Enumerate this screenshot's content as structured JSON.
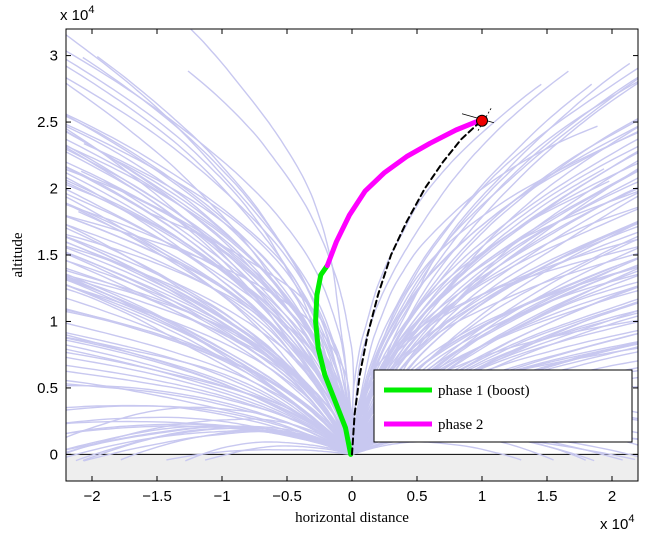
{
  "chart_data": {
    "type": "line",
    "xlabel": "horizontal distance",
    "ylabel": "altitude",
    "x_multiplier_label": "x 10",
    "x_multiplier_exp": "4",
    "y_multiplier_label": "x 10",
    "y_multiplier_exp": "4",
    "xlim": [
      -2.2,
      2.2
    ],
    "ylim": [
      -0.2,
      3.2
    ],
    "xticks": [
      -2,
      -1.5,
      -1,
      -0.5,
      0,
      0.5,
      1,
      1.5,
      2
    ],
    "xtick_labels": [
      "−2",
      "−1.5",
      "−1",
      "−0.5",
      "0",
      "0.5",
      "1",
      "1.5",
      "2"
    ],
    "yticks": [
      0,
      0.5,
      1,
      1.5,
      2,
      2.5,
      3
    ],
    "ytick_labels": [
      "0",
      "0.5",
      "1",
      "1.5",
      "2",
      "2.5",
      "3"
    ],
    "ground_level": 0,
    "legend": {
      "placement": "bottom-right",
      "entries": [
        "phase 1 (boost)",
        "phase 2"
      ]
    },
    "series": [
      {
        "name": "phase 1 (boost)",
        "color": "#00ee00",
        "x": [
          -0.01,
          -0.05,
          -0.13,
          -0.21,
          -0.26,
          -0.28,
          -0.27,
          -0.24,
          -0.19
        ],
        "y": [
          0.0,
          0.2,
          0.4,
          0.6,
          0.8,
          1.0,
          1.2,
          1.35,
          1.42
        ]
      },
      {
        "name": "phase 2",
        "color": "#ff00ff",
        "x": [
          -0.19,
          -0.12,
          -0.02,
          0.1,
          0.25,
          0.42,
          0.6,
          0.8,
          0.95,
          1.0
        ],
        "y": [
          1.42,
          1.6,
          1.8,
          1.98,
          2.12,
          2.24,
          2.34,
          2.44,
          2.5,
          2.51
        ]
      },
      {
        "color": "#000000",
        "x": [
          0.0,
          0.02,
          0.06,
          0.12,
          0.2,
          0.3,
          0.42,
          0.56,
          0.7,
          0.84,
          0.95,
          1.0
        ],
        "y": [
          0.0,
          0.3,
          0.6,
          0.9,
          1.2,
          1.5,
          1.75,
          2.0,
          2.2,
          2.37,
          2.47,
          2.51
        ]
      }
    ],
    "target_point": {
      "x": 1.0,
      "y": 2.51,
      "color": "#ee0000"
    },
    "background_trajectories": {
      "color": "#c8c8f0",
      "count": 220
    },
    "colors": {
      "background_trajectories": "#c8c8f0",
      "ground": "#eeeeee",
      "phase1": "#00ee00",
      "phase2": "#ff00ff",
      "nominal": "#000000",
      "target": "#ee0000"
    }
  }
}
